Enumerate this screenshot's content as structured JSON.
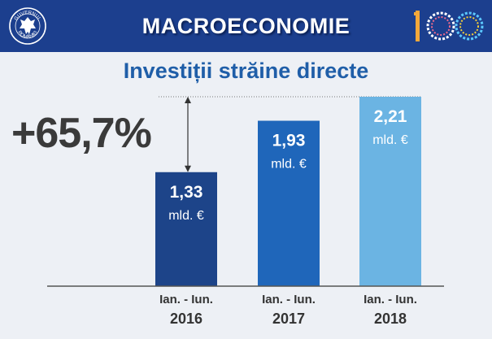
{
  "header": {
    "title": "MACROECONOMIE",
    "seal_text": "GUVERNUL ROMÂNIEI"
  },
  "colors": {
    "banner": "#1c3f8e",
    "title": "#1f5ea8",
    "bar_2016": "#1d4489",
    "bar_2017": "#1f66ba",
    "bar_2018": "#6bb4e3",
    "axis": "#555555"
  },
  "icons": [
    "government-seal-icon",
    "romania-100-logo-icon"
  ],
  "chart_data": {
    "type": "bar",
    "title": "Investiții străine directe",
    "annotation": "+65,7%",
    "categories": [
      {
        "period": "Ian. - Iun.",
        "year": "2016"
      },
      {
        "period": "Ian. - Iun.",
        "year": "2017"
      },
      {
        "period": "Ian. - Iun.",
        "year": "2018"
      }
    ],
    "values": [
      1.33,
      1.93,
      2.21
    ],
    "value_labels": [
      "1,33",
      "1,93",
      "2,21"
    ],
    "unit": "mld. €",
    "ylim": [
      0,
      2.21
    ],
    "grid": false
  }
}
